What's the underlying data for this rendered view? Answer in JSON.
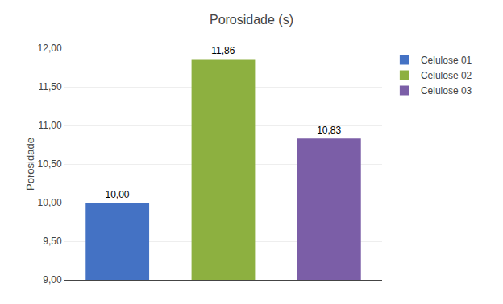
{
  "chart_data": {
    "type": "bar",
    "title": "Porosidade (s)",
    "ylabel": "Porosidade",
    "categories": [
      "Celulose 01",
      "Celulose 02",
      "Celulose 03"
    ],
    "values": [
      10.0,
      11.86,
      10.83
    ],
    "value_labels": [
      "10,00",
      "11,86",
      "10,83"
    ],
    "colors": [
      "#4472C4",
      "#8DB040",
      "#7B5EA7"
    ],
    "data_labels": true,
    "ylim": [
      9.0,
      12.0
    ],
    "yticks": [
      {
        "value": 9.0,
        "label": "9,00"
      },
      {
        "value": 9.5,
        "label": "9,50"
      },
      {
        "value": 10.0,
        "label": "10,00"
      },
      {
        "value": 10.5,
        "label": "10,50"
      },
      {
        "value": 11.0,
        "label": "11,00"
      },
      {
        "value": 11.5,
        "label": "11,50"
      },
      {
        "value": 12.0,
        "label": "12,00"
      }
    ],
    "grid": true,
    "legend": "right",
    "tick_labels": "y"
  }
}
